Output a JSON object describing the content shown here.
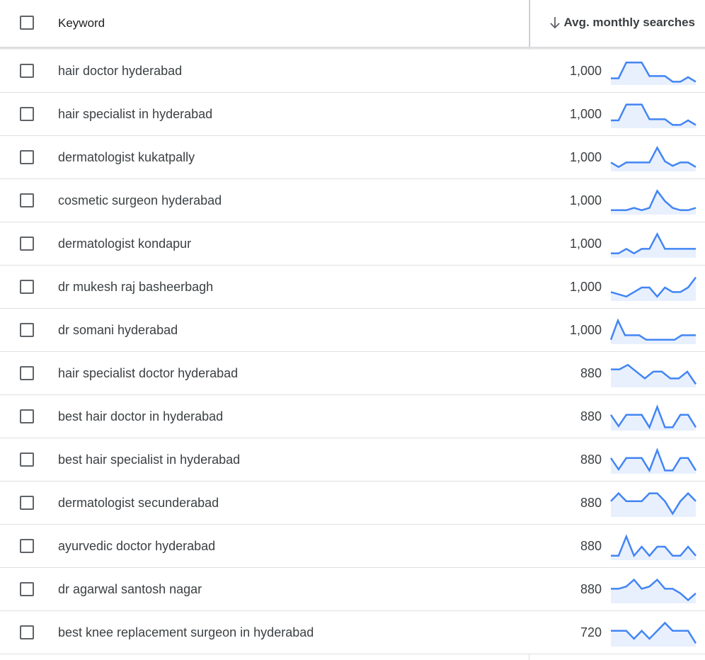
{
  "header": {
    "keyword_label": "Keyword",
    "avg_label": "Avg. monthly searches",
    "sort_icon": "arrow-down-icon"
  },
  "colors": {
    "spark_line": "#4285f4",
    "spark_fill": "#e8f0fe",
    "checkbox_border": "#5f6368"
  },
  "rows": [
    {
      "keyword": "hair doctor hyderabad",
      "searches": "1,000",
      "trend": [
        0.2,
        0.2,
        0.9,
        0.9,
        0.9,
        0.3,
        0.3,
        0.3,
        0.05,
        0.05,
        0.25,
        0.05
      ]
    },
    {
      "keyword": "hair specialist in hyderabad",
      "searches": "1,000",
      "trend": [
        0.25,
        0.25,
        0.95,
        0.95,
        0.95,
        0.3,
        0.3,
        0.3,
        0.05,
        0.05,
        0.25,
        0.05
      ]
    },
    {
      "keyword": "dermatologist kukatpally",
      "searches": "1,000",
      "trend": [
        0.3,
        0.1,
        0.3,
        0.3,
        0.3,
        0.3,
        0.95,
        0.35,
        0.15,
        0.3,
        0.3,
        0.1
      ]
    },
    {
      "keyword": "cosmetic surgeon hyderabad",
      "searches": "1,000",
      "trend": [
        0.1,
        0.1,
        0.1,
        0.2,
        0.1,
        0.2,
        0.95,
        0.5,
        0.2,
        0.1,
        0.1,
        0.2
      ]
    },
    {
      "keyword": "dermatologist kondapur",
      "searches": "1,000",
      "trend": [
        0.1,
        0.1,
        0.3,
        0.1,
        0.3,
        0.3,
        0.95,
        0.3,
        0.3,
        0.3,
        0.3,
        0.3
      ]
    },
    {
      "keyword": "dr mukesh raj basheerbagh",
      "searches": "1,000",
      "trend": [
        0.3,
        0.2,
        0.1,
        0.3,
        0.5,
        0.5,
        0.1,
        0.5,
        0.3,
        0.3,
        0.5,
        0.95
      ]
    },
    {
      "keyword": "dr somani hyderabad",
      "searches": "1,000",
      "trend": [
        0.1,
        0.95,
        0.3,
        0.3,
        0.3,
        0.1,
        0.1,
        0.1,
        0.1,
        0.1,
        0.3,
        0.3,
        0.3
      ]
    },
    {
      "keyword": "hair specialist doctor hyderabad",
      "searches": "880",
      "trend": [
        0.7,
        0.7,
        0.9,
        0.6,
        0.3,
        0.6,
        0.6,
        0.3,
        0.3,
        0.6,
        0.05
      ]
    },
    {
      "keyword": "best hair doctor in hyderabad",
      "searches": "880",
      "trend": [
        0.6,
        0.1,
        0.6,
        0.6,
        0.6,
        0.05,
        0.95,
        0.05,
        0.05,
        0.6,
        0.6,
        0.05
      ]
    },
    {
      "keyword": "best hair specialist in hyderabad",
      "searches": "880",
      "trend": [
        0.6,
        0.1,
        0.6,
        0.6,
        0.6,
        0.05,
        0.95,
        0.05,
        0.05,
        0.6,
        0.6,
        0.05
      ]
    },
    {
      "keyword": "dermatologist secunderabad",
      "searches": "880",
      "trend": [
        0.6,
        0.95,
        0.6,
        0.6,
        0.6,
        0.95,
        0.95,
        0.6,
        0.05,
        0.6,
        0.95,
        0.6
      ]
    },
    {
      "keyword": "ayurvedic doctor hyderabad",
      "searches": "880",
      "trend": [
        0.1,
        0.1,
        0.95,
        0.1,
        0.5,
        0.1,
        0.5,
        0.5,
        0.1,
        0.1,
        0.5,
        0.1
      ]
    },
    {
      "keyword": "dr agarwal santosh nagar",
      "searches": "880",
      "trend": [
        0.55,
        0.55,
        0.65,
        0.95,
        0.55,
        0.65,
        0.95,
        0.55,
        0.55,
        0.35,
        0.05,
        0.35
      ]
    },
    {
      "keyword": "best knee replacement surgeon in hyderabad",
      "searches": "720",
      "trend": [
        0.6,
        0.6,
        0.6,
        0.25,
        0.6,
        0.25,
        0.6,
        0.95,
        0.6,
        0.6,
        0.6,
        0.05
      ]
    }
  ]
}
